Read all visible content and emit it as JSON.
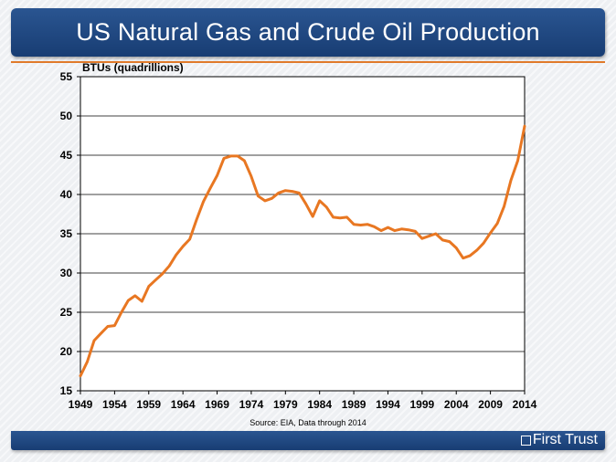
{
  "header": {
    "title": "US Natural Gas and Crude Oil Production"
  },
  "source_note": "Source: EIA, Data through 2014",
  "brand": {
    "name": "First Trust",
    "icon": "square-logo-icon"
  },
  "colors": {
    "header_bg": "#1f4a85",
    "line": "#e87722",
    "accent_rule": "#e07a2a"
  },
  "chart_data": {
    "type": "line",
    "ylabel": "BTUs (quadrillions)",
    "ylim": [
      15,
      55
    ],
    "yticks": [
      15,
      20,
      25,
      30,
      35,
      40,
      45,
      50,
      55
    ],
    "xlim": [
      1949,
      2014
    ],
    "xticks": [
      1949,
      1954,
      1959,
      1964,
      1969,
      1974,
      1979,
      1984,
      1989,
      1994,
      1999,
      2004,
      2009,
      2014
    ],
    "grid": true,
    "series": [
      {
        "x": [
          1949,
          1950,
          1951,
          1952,
          1953,
          1954,
          1955,
          1956,
          1957,
          1958,
          1959,
          1960,
          1961,
          1962,
          1963,
          1964,
          1965,
          1966,
          1967,
          1968,
          1969,
          1970,
          1971,
          1972,
          1973,
          1974,
          1975,
          1976,
          1977,
          1978,
          1979,
          1980,
          1981,
          1982,
          1983,
          1984,
          1985,
          1986,
          1987,
          1988,
          1989,
          1990,
          1991,
          1992,
          1993,
          1994,
          1995,
          1996,
          1997,
          1998,
          1999,
          2000,
          2001,
          2002,
          2003,
          2004,
          2005,
          2006,
          2007,
          2008,
          2009,
          2010,
          2011,
          2012,
          2013,
          2014
        ],
        "values": [
          16.9,
          18.7,
          21.4,
          22.3,
          23.2,
          23.3,
          25.0,
          26.5,
          27.1,
          26.4,
          28.3,
          29.1,
          29.9,
          30.9,
          32.3,
          33.4,
          34.3,
          36.8,
          39.1,
          40.8,
          42.4,
          44.6,
          44.9,
          44.9,
          44.3,
          42.3,
          39.8,
          39.2,
          39.5,
          40.2,
          40.5,
          40.4,
          40.2,
          38.8,
          37.2,
          39.2,
          38.4,
          37.1,
          37.0,
          37.1,
          36.2,
          36.1,
          36.2,
          35.9,
          35.4,
          35.8,
          35.4,
          35.6,
          35.5,
          35.3,
          34.4,
          34.7,
          35.0,
          34.2,
          34.0,
          33.2,
          31.9,
          32.2,
          32.9,
          33.8,
          35.1,
          36.3,
          38.5,
          41.8,
          44.3,
          48.7
        ]
      }
    ]
  }
}
